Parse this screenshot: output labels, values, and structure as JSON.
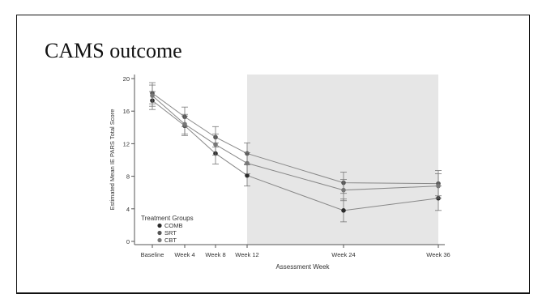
{
  "slide": {
    "title": "CAMS outcome"
  },
  "chart_data": {
    "type": "line",
    "title": "",
    "xlabel": "Assessment Week",
    "ylabel": "Estimated Mean IE PARS Total Score",
    "categories": [
      "Baseline",
      "Week 4",
      "Week 8",
      "Week 12",
      "Week 24",
      "Week 36"
    ],
    "x": [
      0,
      4,
      8,
      12,
      24,
      36
    ],
    "ylim": [
      0,
      20
    ],
    "yticks": [
      0,
      4,
      8,
      12,
      16,
      20
    ],
    "shaded_region": {
      "from": 12,
      "to": 36,
      "color": "#e6e6e6"
    },
    "grid": false,
    "legend": {
      "title": "Treatment Groups",
      "placement": "bottom-left"
    },
    "series": [
      {
        "name": "COMB",
        "color": "#2b2b2b",
        "values": [
          17.3,
          14.2,
          10.8,
          8.1,
          3.8,
          5.3
        ],
        "lower": [
          16.2,
          13.0,
          9.5,
          6.8,
          2.4,
          3.8
        ],
        "upper": [
          18.4,
          15.4,
          12.1,
          9.4,
          5.2,
          6.8
        ]
      },
      {
        "name": "SRT",
        "color": "#555555",
        "values": [
          18.2,
          15.3,
          12.8,
          10.8,
          7.2,
          7.1
        ],
        "lower": [
          16.9,
          14.1,
          11.6,
          9.5,
          5.9,
          5.6
        ],
        "upper": [
          19.5,
          16.5,
          14.1,
          12.1,
          8.5,
          8.7
        ]
      },
      {
        "name": "CBT",
        "color": "#777777",
        "values": [
          17.9,
          14.4,
          11.9,
          9.6,
          6.3,
          6.8
        ],
        "lower": [
          16.6,
          13.2,
          10.6,
          8.3,
          5.0,
          5.3
        ],
        "upper": [
          19.2,
          15.6,
          13.2,
          10.9,
          7.6,
          8.3
        ]
      }
    ]
  }
}
